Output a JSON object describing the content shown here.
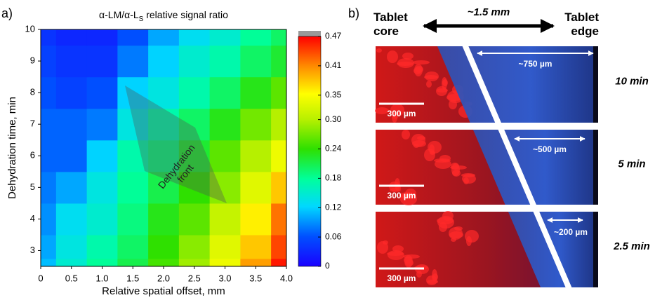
{
  "chart_data": {
    "type": "heatmap",
    "panel_label": "a)",
    "title": [
      "α-LM/α-L",
      "S",
      " relative signal ratio"
    ],
    "x_label": "Relative spatial offset, mm",
    "y_label": "Dehydration time, min",
    "annotation": [
      "Dehydration",
      "front"
    ],
    "x": [
      0,
      0.5,
      1,
      1.5,
      2,
      2.5,
      3,
      3.5,
      4
    ],
    "y": [
      2.5,
      3,
      4,
      5,
      6,
      7,
      8,
      9,
      10
    ],
    "z": [
      [
        0.11,
        0.15,
        0.18,
        0.21,
        0.25,
        0.29,
        0.34,
        0.4,
        0.46
      ],
      [
        0.1,
        0.14,
        0.17,
        0.2,
        0.24,
        0.28,
        0.33,
        0.38,
        0.44
      ],
      [
        0.09,
        0.13,
        0.15,
        0.19,
        0.23,
        0.26,
        0.31,
        0.36,
        0.42
      ],
      [
        0.08,
        0.1,
        0.14,
        0.18,
        0.21,
        0.24,
        0.28,
        0.33,
        0.38
      ],
      [
        0.07,
        0.07,
        0.12,
        0.17,
        0.19,
        0.22,
        0.26,
        0.3,
        0.34
      ],
      [
        0.07,
        0.07,
        0.08,
        0.14,
        0.17,
        0.2,
        0.23,
        0.27,
        0.3
      ],
      [
        0.06,
        0.05,
        0.06,
        0.12,
        0.14,
        0.17,
        0.2,
        0.23,
        0.26
      ],
      [
        0.05,
        0.04,
        0.04,
        0.08,
        0.12,
        0.15,
        0.17,
        0.2,
        0.22
      ],
      [
        0.04,
        0.03,
        0.03,
        0.06,
        0.1,
        0.13,
        0.15,
        0.18,
        0.2
      ]
    ],
    "xlim": [
      0,
      4
    ],
    "ylim": [
      2.5,
      10
    ],
    "xticks": [
      0,
      0.5,
      {
        "value": 1,
        "label": "1.0"
      },
      1.5,
      {
        "value": 2,
        "label": "2.0"
      },
      2.5,
      {
        "value": 3,
        "label": "3.0"
      },
      3.5,
      {
        "value": 4,
        "label": "4.0"
      }
    ],
    "yticks": [
      3,
      4,
      5,
      6,
      7,
      8,
      9,
      10
    ],
    "clim": [
      0,
      0.47
    ],
    "cticks": [
      0,
      0.06,
      0.12,
      0.18,
      0.24,
      {
        "value": 0.3,
        "label": "0.30"
      },
      0.35,
      0.41,
      0.47
    ]
  },
  "panel_b": {
    "label": "b)",
    "core_label": [
      "Tablet",
      "core"
    ],
    "edge_label": [
      "Tablet",
      "edge"
    ],
    "span_label": "~1.5 mm",
    "rows": [
      {
        "time": "10 min",
        "width_label": "~750 µm",
        "scale_bar": "300 µm"
      },
      {
        "time": "5 min",
        "width_label": "~500 µm",
        "scale_bar": "300 µm"
      },
      {
        "time": "2.5 min",
        "width_label": "~200 µm",
        "scale_bar": "300 µm"
      }
    ]
  }
}
